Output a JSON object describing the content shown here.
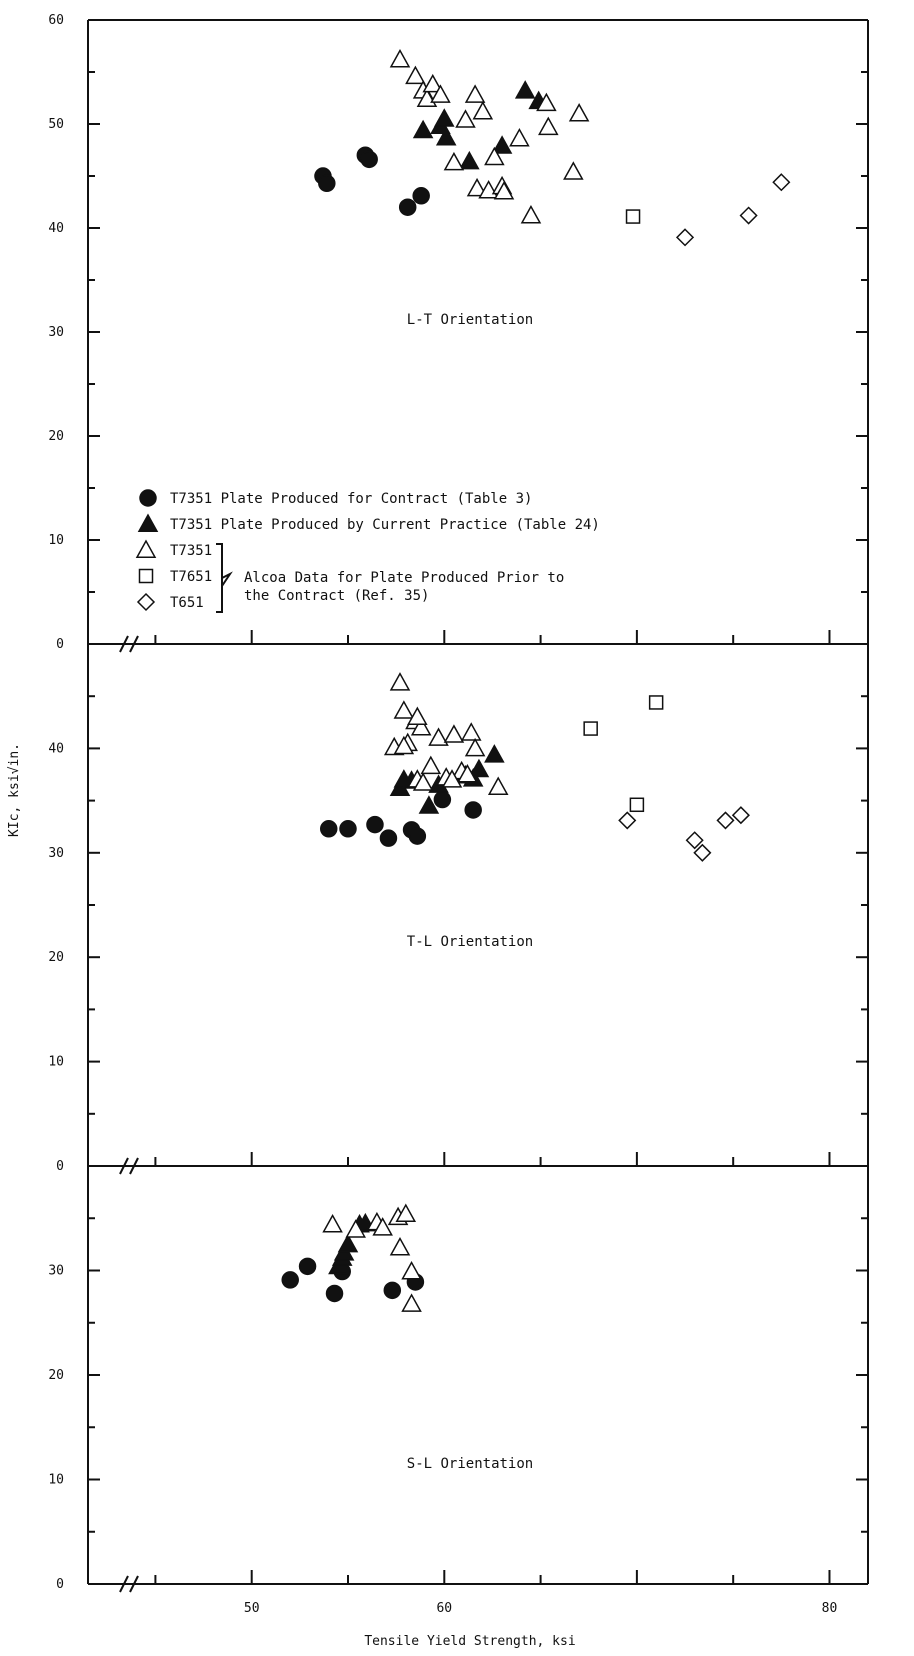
{
  "chart_data": {
    "type": "scatter",
    "xlabel": "Tensile Yield Strength, ksi",
    "ylabel": "KIc, ksi√in.",
    "x_tick_labels": [
      "50",
      "60",
      "",
      "80"
    ],
    "legend": {
      "items": [
        {
          "label": "T7351 Plate Produced for Contract (Table  3)",
          "marker": "filled-circle"
        },
        {
          "label": "T7351 Plate Produced by Current Practice (Table 24)",
          "marker": "filled-triangle"
        },
        {
          "label": "T7351",
          "marker": "open-triangle"
        },
        {
          "label": "T7651",
          "marker": "open-square"
        },
        {
          "label": "T651",
          "marker": "open-diamond"
        }
      ],
      "group_note_line1": "Alcoa Data for Plate Produced Prior to",
      "group_note_line2": "the Contract (Ref. 35)"
    },
    "panels": [
      {
        "name": "L-T Orientation",
        "y_tick_labels": [
          "0",
          "10",
          "20",
          "30",
          "40",
          "50",
          "60"
        ],
        "series": [
          {
            "name": "T7351 Plate Produced for Contract (Table  3)",
            "marker": "filled-circle",
            "points": [
              [
                53.7,
                45.0
              ],
              [
                53.9,
                44.3
              ],
              [
                55.9,
                47.0
              ],
              [
                56.1,
                46.6
              ],
              [
                58.1,
                42.0
              ],
              [
                58.8,
                43.1
              ]
            ]
          },
          {
            "name": "T7351 Plate Produced by Current Practice (Table 24)",
            "marker": "filled-triangle",
            "points": [
              [
                58.9,
                49.4
              ],
              [
                59.8,
                49.8
              ],
              [
                60.0,
                50.5
              ],
              [
                60.1,
                48.7
              ],
              [
                61.3,
                46.4
              ],
              [
                63.0,
                47.9
              ],
              [
                64.2,
                53.2
              ],
              [
                64.9,
                52.2
              ]
            ]
          },
          {
            "name": "T7351",
            "marker": "open-triangle",
            "points": [
              [
                57.7,
                56.2
              ],
              [
                58.5,
                54.6
              ],
              [
                58.9,
                53.2
              ],
              [
                59.1,
                52.4
              ],
              [
                59.4,
                53.8
              ],
              [
                59.8,
                52.8
              ],
              [
                60.5,
                46.3
              ],
              [
                61.1,
                50.4
              ],
              [
                61.6,
                52.8
              ],
              [
                61.7,
                43.8
              ],
              [
                62.0,
                51.2
              ],
              [
                62.3,
                43.6
              ],
              [
                62.6,
                46.8
              ],
              [
                63.0,
                44.0
              ],
              [
                63.1,
                43.5
              ],
              [
                63.9,
                48.6
              ],
              [
                64.5,
                41.2
              ],
              [
                65.3,
                52.0
              ],
              [
                65.4,
                49.7
              ],
              [
                66.7,
                45.4
              ],
              [
                67.0,
                51.0
              ]
            ]
          },
          {
            "name": "T7651",
            "marker": "open-square",
            "points": [
              [
                69.8,
                41.1
              ]
            ]
          },
          {
            "name": "T651",
            "marker": "open-diamond",
            "points": [
              [
                72.5,
                39.1
              ],
              [
                75.8,
                41.2
              ],
              [
                77.5,
                44.4
              ]
            ]
          }
        ]
      },
      {
        "name": "T-L Orientation",
        "y_tick_labels": [
          "0",
          "10",
          "20",
          "30",
          "40",
          ""
        ],
        "series": [
          {
            "name": "T7351 Plate Produced for Contract (Table  3)",
            "marker": "filled-circle",
            "points": [
              [
                54.0,
                32.3
              ],
              [
                55.0,
                32.3
              ],
              [
                56.4,
                32.7
              ],
              [
                57.1,
                31.4
              ],
              [
                58.3,
                32.2
              ],
              [
                58.6,
                31.6
              ],
              [
                59.9,
                35.1
              ],
              [
                61.5,
                34.1
              ]
            ]
          },
          {
            "name": "T7351 Plate Produced by Current Practice (Table 24)",
            "marker": "filled-triangle",
            "points": [
              [
                57.7,
                36.2
              ],
              [
                57.9,
                37.0
              ],
              [
                58.3,
                36.9
              ],
              [
                59.2,
                34.5
              ],
              [
                59.7,
                36.5
              ],
              [
                61.1,
                37.4
              ],
              [
                61.5,
                37.1
              ],
              [
                61.8,
                38.0
              ],
              [
                62.6,
                39.4
              ]
            ]
          },
          {
            "name": "T7351",
            "marker": "open-triangle",
            "points": [
              [
                57.4,
                40.1
              ],
              [
                57.7,
                46.3
              ],
              [
                57.9,
                43.6
              ],
              [
                58.1,
                40.5
              ],
              [
                58.6,
                37.0
              ],
              [
                58.9,
                36.7
              ],
              [
                59.3,
                38.3
              ],
              [
                59.7,
                41.0
              ],
              [
                60.1,
                37.2
              ],
              [
                60.5,
                41.3
              ],
              [
                60.9,
                37.8
              ],
              [
                61.2,
                37.5
              ],
              [
                61.4,
                41.5
              ],
              [
                61.6,
                40.0
              ],
              [
                62.8,
                36.3
              ],
              [
                57.9,
                40.2
              ],
              [
                58.5,
                42.6
              ],
              [
                58.8,
                42.0
              ],
              [
                58.6,
                43.0
              ],
              [
                60.4,
                37.0
              ]
            ]
          },
          {
            "name": "T7651",
            "marker": "open-square",
            "points": [
              [
                67.6,
                41.9
              ],
              [
                70.0,
                34.6
              ],
              [
                71.0,
                44.4
              ]
            ]
          },
          {
            "name": "T651",
            "marker": "open-diamond",
            "points": [
              [
                69.5,
                33.1
              ],
              [
                73.0,
                31.2
              ],
              [
                73.4,
                30.0
              ],
              [
                74.6,
                33.1
              ],
              [
                75.4,
                33.6
              ]
            ]
          }
        ]
      },
      {
        "name": "S-L Orientation",
        "y_tick_labels": [
          "0",
          "10",
          "20",
          "30",
          ""
        ],
        "series": [
          {
            "name": "T7351 Plate Produced for Contract (Table  3)",
            "marker": "filled-circle",
            "points": [
              [
                52.0,
                29.1
              ],
              [
                52.9,
                30.4
              ],
              [
                54.3,
                27.8
              ],
              [
                54.7,
                29.9
              ],
              [
                57.3,
                28.1
              ],
              [
                58.5,
                28.9
              ]
            ]
          },
          {
            "name": "T7351 Plate Produced by Current Practice (Table 24)",
            "marker": "filled-triangle",
            "points": [
              [
                54.5,
                30.4
              ],
              [
                54.7,
                31.2
              ],
              [
                54.8,
                31.7
              ],
              [
                55.0,
                32.5
              ],
              [
                55.6,
                34.4
              ],
              [
                55.9,
                34.5
              ]
            ]
          },
          {
            "name": "T7351",
            "marker": "open-triangle",
            "points": [
              [
                54.2,
                34.4
              ],
              [
                55.4,
                33.9
              ],
              [
                56.5,
                34.6
              ],
              [
                56.8,
                34.1
              ],
              [
                57.6,
                35.1
              ],
              [
                58.0,
                35.4
              ],
              [
                57.7,
                32.2
              ],
              [
                58.3,
                29.9
              ],
              [
                58.3,
                26.8
              ]
            ]
          }
        ]
      }
    ]
  }
}
